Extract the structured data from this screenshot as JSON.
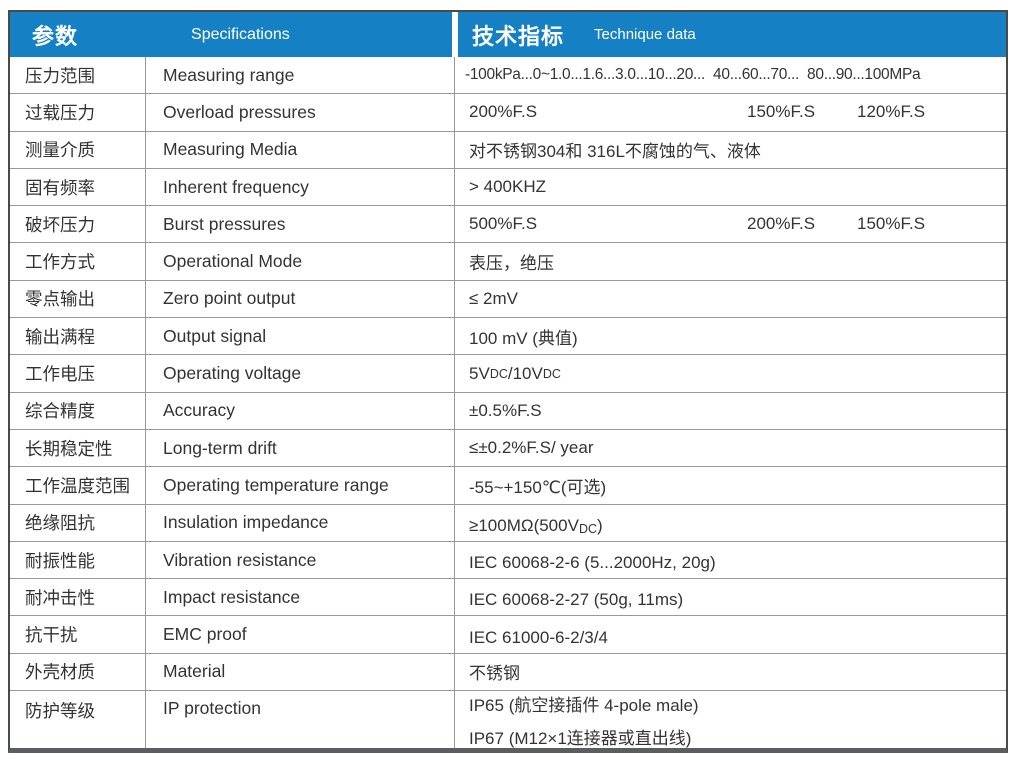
{
  "colors": {
    "header_blue": "#1581c4",
    "grid_line": "#989898",
    "outer_border": "#4a4a4a",
    "text": "#333333"
  },
  "header": {
    "left_group": {
      "title_zh": "参数",
      "title_en": "Specifications"
    },
    "right_group": {
      "title_zh": "技术指标",
      "title_en": "Technique data"
    }
  },
  "table": {
    "rows": [
      {
        "param_zh": "压力范围",
        "param_en": "Measuring range",
        "value": "-100kPa...0~1.0...1.6...3.0...10...20...  40...60...70...  80...90...100MPa"
      },
      {
        "param_zh": "过载压力",
        "param_en": "Overload pressures",
        "value_parts": [
          "200%F.S",
          "150%F.S",
          "120%F.S"
        ]
      },
      {
        "param_zh": "测量介质",
        "param_en": "Measuring Media",
        "value": "对不锈钢304和 316L不腐蚀的气、液体"
      },
      {
        "param_zh": "固有频率",
        "param_en": "Inherent frequency",
        "value": "> 400KHZ"
      },
      {
        "param_zh": "破坏压力",
        "param_en": "Burst pressures",
        "value_parts": [
          "500%F.S",
          "200%F.S",
          "150%F.S"
        ]
      },
      {
        "param_zh": "工作方式",
        "param_en": "Operational Mode",
        "value": "表压，绝压"
      },
      {
        "param_zh": "零点输出",
        "param_en": "Zero point output",
        "value": "≤ 2mV"
      },
      {
        "param_zh": "输出满程",
        "param_en": "Output signal",
        "value": "100 mV (典值)"
      },
      {
        "param_zh": "工作电压",
        "param_en": "Operating voltage",
        "value": "5VDC/10VDC",
        "dc_small": true
      },
      {
        "param_zh": "综合精度",
        "param_en": "Accuracy",
        "value": "±0.5%F.S"
      },
      {
        "param_zh": "长期稳定性",
        "param_en": "Long-term drift",
        "value": "≤±0.2%F.S/ year"
      },
      {
        "param_zh": "工作温度范围",
        "param_en": "Operating temperature range",
        "value": "-55~+150℃(可选)"
      },
      {
        "param_zh": "绝缘阻抗",
        "param_en": "Insulation impedance",
        "value": "≥100MΩ(500VDC)",
        "dc_small": true
      },
      {
        "param_zh": "耐振性能",
        "param_en": "Vibration resistance",
        "value": "IEC 60068-2-6 (5...2000Hz, 20g)"
      },
      {
        "param_zh": "耐冲击性",
        "param_en": "Impact resistance",
        "value": "IEC 60068-2-27 (50g, 11ms)"
      },
      {
        "param_zh": "抗干扰",
        "param_en": "EMC proof",
        "value": "IEC 61000-6-2/3/4"
      },
      {
        "param_zh": "外壳材质",
        "param_en": "Material",
        "value": "不锈钢"
      },
      {
        "param_zh": "防护等级",
        "param_en": "IP protection",
        "value_lines": [
          "IP65 (航空接插件 4-pole male)",
          "IP67 (M12×1连接器或直出线)"
        ]
      }
    ]
  }
}
